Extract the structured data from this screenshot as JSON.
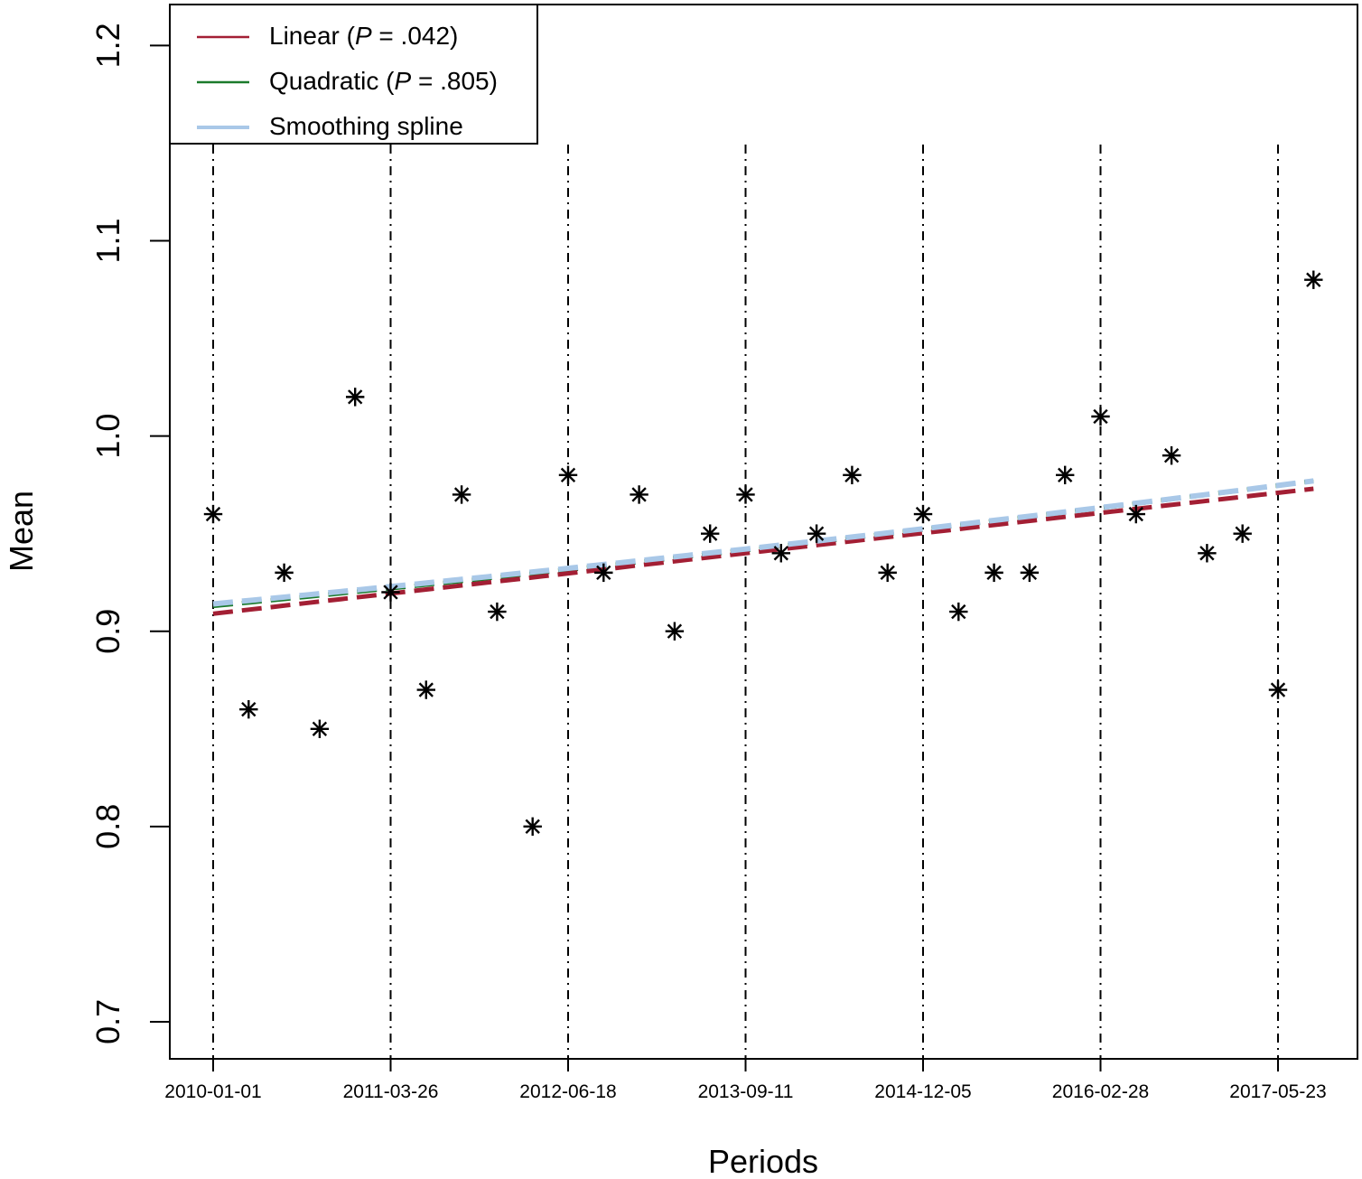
{
  "chart_data": {
    "type": "scatter",
    "title": "",
    "xlabel": "Periods",
    "ylabel": "Mean",
    "ylim": [
      0.681,
      1.221
    ],
    "x_tick_labels": [
      "2010-01-01",
      "2011-03-26",
      "2012-06-18",
      "2013-09-11",
      "2014-12-05",
      "2016-02-28",
      "2017-05-23"
    ],
    "y_tick_labels": [
      "0.7",
      "0.8",
      "0.9",
      "1.0",
      "1.1",
      "1.2"
    ],
    "y_ticks": [
      0.7,
      0.8,
      0.9,
      1.0,
      1.1,
      1.2
    ],
    "period_count": 32,
    "points": {
      "name": "Observed mean",
      "values": [
        0.96,
        0.86,
        0.93,
        0.85,
        1.02,
        0.92,
        0.87,
        0.97,
        0.91,
        0.8,
        0.98,
        0.93,
        0.97,
        0.9,
        0.95,
        0.97,
        0.94,
        0.95,
        0.98,
        0.93,
        0.96,
        0.91,
        0.93,
        0.93,
        0.98,
        1.01,
        0.96,
        0.99,
        0.94,
        0.95,
        0.87,
        1.08
      ]
    },
    "fits": [
      {
        "name": "Linear",
        "p_value": ".042",
        "start": 0.909,
        "end": 0.973,
        "shape": "linear",
        "color": "#a31f34"
      },
      {
        "name": "Quadratic",
        "p_value": ".805",
        "start": 0.913,
        "end": 0.977,
        "shape": "quadratic",
        "color": "#1b7a2b"
      },
      {
        "name": "Smoothing spline",
        "start": 0.914,
        "end": 0.977,
        "shape": "quadratic",
        "color": "#a9c8e8"
      }
    ],
    "legend": {
      "position": "top-left",
      "entries": [
        {
          "prefix": "Linear (",
          "italic": "P",
          "suffix": " = .042)"
        },
        {
          "prefix": "Quadratic (",
          "italic": "P",
          "suffix": " = .805)"
        },
        {
          "prefix": "Smoothing spline",
          "italic": "",
          "suffix": ""
        }
      ]
    },
    "vertical_reference_lines": [
      "2010-01-01",
      "2011-03-26",
      "2012-06-18",
      "2013-09-11",
      "2014-12-05",
      "2016-02-28",
      "2017-05-23"
    ],
    "grid": false
  }
}
